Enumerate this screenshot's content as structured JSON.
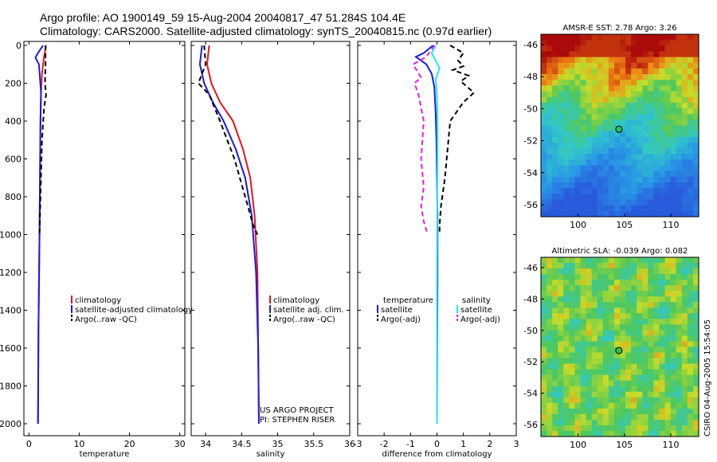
{
  "header": {
    "line1": "Argo profile: AO 1900149_59 15-Aug-2004 20040817_47 51.284S 104.4E",
    "line2": "Climatology: CARS2000. Satellite-adjusted climatology: synTS_20040815.nc (0.97d earlier)"
  },
  "colors": {
    "clim": "#e8141e",
    "sat": "#1a1ae6",
    "argo": "#000000",
    "sal_sat": "#20e8f0",
    "sal_argo": "#e020e0"
  },
  "chart_data": [
    {
      "type": "line",
      "xlabel": "temperature",
      "ylim": [
        2050,
        0
      ],
      "xlim": [
        -1,
        31
      ],
      "yticks": [
        "0",
        "200",
        "400",
        "600",
        "800",
        "1000",
        "1200",
        "1400",
        "1600",
        "1800",
        "2000"
      ],
      "xticks": [
        "0",
        "10",
        "20",
        "30"
      ],
      "legend": [
        "climatology",
        "satellite-adjusted climatology",
        "Argo(..raw -QC)"
      ],
      "series": [
        {
          "name": "climatology",
          "color": "#e8141e",
          "x": [
            3.4,
            3.0,
            2.6,
            2.4,
            2.3,
            2.2,
            2.1,
            1.9,
            1.8
          ],
          "y": [
            0,
            60,
            150,
            250,
            400,
            700,
            1000,
            1500,
            2000
          ]
        },
        {
          "name": "satellite-adjusted climatology",
          "color": "#1a1ae6",
          "x": [
            2.8,
            1.8,
            1.3,
            2.0,
            2.4,
            2.3,
            2.2,
            2.1,
            1.9,
            1.8
          ],
          "y": [
            0,
            40,
            65,
            100,
            250,
            400,
            700,
            1000,
            1500,
            2000
          ]
        },
        {
          "name": "Argo(..raw -QC)",
          "color": "#000000",
          "dash": true,
          "x": [
            3.3,
            3.3,
            3.2,
            3.4,
            3.0,
            2.6,
            2.3,
            2.1
          ],
          "y": [
            0,
            100,
            200,
            260,
            330,
            500,
            800,
            1000
          ]
        }
      ]
    },
    {
      "type": "line",
      "xlabel": "salinity",
      "ylim": [
        2050,
        0
      ],
      "xlim": [
        33.8,
        36.0
      ],
      "xticks": [
        "34",
        "34.5",
        "35",
        "35.5",
        "36"
      ],
      "legend": [
        "climatology",
        "satellite adj. clim.",
        "Argo(..raw -QC)"
      ],
      "annotation": [
        "US ARGO PROJECT",
        "PI: STEPHEN RISER"
      ],
      "series": [
        {
          "name": "climatology",
          "color": "#e8141e",
          "x": [
            34.05,
            34.02,
            34.08,
            34.2,
            34.38,
            34.52,
            34.62,
            34.68,
            34.72,
            34.73,
            34.74
          ],
          "y": [
            0,
            100,
            200,
            300,
            400,
            550,
            700,
            900,
            1200,
            1600,
            2000
          ]
        },
        {
          "name": "satellite adj. clim.",
          "color": "#1a1ae6",
          "x": [
            33.95,
            33.92,
            33.98,
            34.1,
            34.25,
            34.42,
            34.55,
            34.64,
            34.7,
            34.73,
            34.74
          ],
          "y": [
            0,
            100,
            200,
            300,
            400,
            550,
            700,
            900,
            1200,
            1600,
            2000
          ]
        },
        {
          "name": "Argo(..raw -QC)",
          "color": "#000000",
          "dash": true,
          "x": [
            33.98,
            34.0,
            33.9,
            34.05,
            34.2,
            34.4,
            34.55,
            34.66,
            34.72
          ],
          "y": [
            0,
            100,
            200,
            260,
            400,
            600,
            800,
            950,
            1000
          ]
        }
      ]
    },
    {
      "type": "line",
      "xlabel": "difference from climatology",
      "ylim": [
        2050,
        0
      ],
      "xlim": [
        -3,
        3
      ],
      "xticks": [
        "-3",
        "-2",
        "-1",
        "0",
        "1",
        "2",
        "3"
      ],
      "legend": [
        "temperature",
        "satellite",
        "Argo(-adj)",
        "salinity",
        "satellite",
        "Argo(-adj)"
      ],
      "series": [
        {
          "name": "temperature satellite",
          "color": "#1a1ae6",
          "x": [
            -0.15,
            -0.5,
            -0.8,
            -0.4,
            -0.2,
            -0.1,
            -0.05,
            -0.02,
            0,
            0.02,
            0.02,
            0.01,
            0
          ],
          "y": [
            0,
            40,
            60,
            100,
            150,
            220,
            350,
            500,
            700,
            900,
            1200,
            1600,
            2000
          ]
        },
        {
          "name": "salinity satellite",
          "color": "#20e8f0",
          "x": [
            -0.05,
            -0.2,
            -0.05,
            0.1,
            -0.05,
            0.0,
            0.02,
            0.02,
            0.01,
            0,
            0,
            0
          ],
          "y": [
            0,
            40,
            80,
            120,
            180,
            260,
            400,
            600,
            900,
            1200,
            1600,
            2000
          ]
        },
        {
          "name": "temperature Argo(-adj)",
          "color": "#000000",
          "dash": true,
          "x": [
            0.5,
            1.0,
            0.8,
            1.0,
            0.6,
            1.2,
            0.9,
            1.4,
            1.0,
            0.5,
            0.4,
            0.3,
            0.15,
            0.1,
            0.1
          ],
          "y": [
            0,
            40,
            80,
            110,
            130,
            160,
            190,
            250,
            300,
            400,
            550,
            700,
            850,
            950,
            1000
          ]
        },
        {
          "name": "salinity Argo(-adj)",
          "color": "#e020e0",
          "dash": true,
          "x": [
            -0.1,
            -0.4,
            -0.9,
            -0.6,
            -0.85,
            -0.7,
            -0.5,
            -0.6,
            -0.5,
            -0.6,
            -0.5,
            -0.35
          ],
          "y": [
            0,
            60,
            100,
            170,
            200,
            260,
            400,
            600,
            750,
            850,
            930,
            1000
          ]
        }
      ]
    }
  ],
  "maps": [
    {
      "title": "AMSR-E SST: 2.78 Argo: 3.26",
      "yticks": [
        "-46",
        "-48",
        "-50",
        "-52",
        "-54",
        "-56"
      ],
      "xticks": [
        "100",
        "105",
        "110"
      ],
      "marker": {
        "lon": 104.4,
        "lat": -51.284
      }
    },
    {
      "title": "Altimetric SLA: -0.039 Argo: 0.082",
      "yticks": [
        "-46",
        "-48",
        "-50",
        "-52",
        "-54",
        "-56"
      ],
      "xticks": [
        "100",
        "105",
        "110"
      ],
      "marker": {
        "lon": 104.4,
        "lat": -51.284
      }
    }
  ],
  "footer": {
    "stamp": "CSIRO 04-Aug-2005 15:54:05"
  }
}
